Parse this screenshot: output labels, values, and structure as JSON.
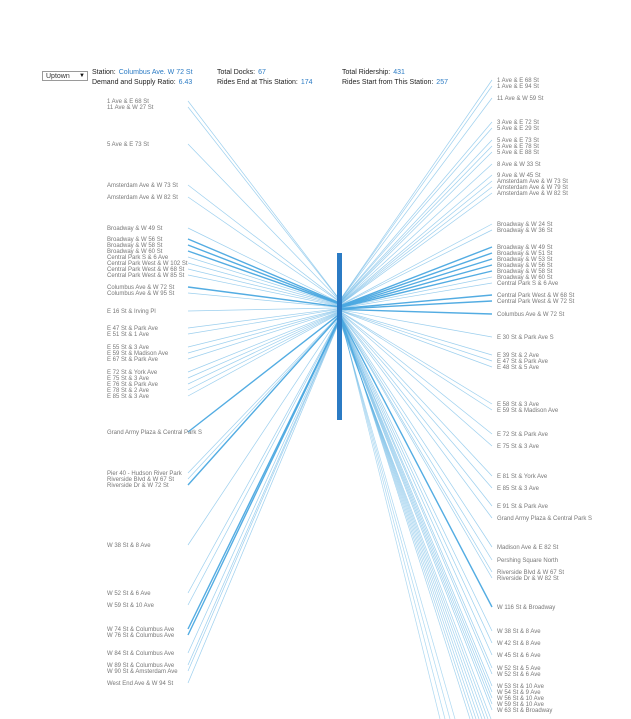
{
  "controls": {
    "dropdown_value": "Uptown",
    "dropdown_icon": "triangle-down-icon"
  },
  "stats": {
    "station_label": "Station:",
    "station_value": "Columbus Ave. W 72 St",
    "ratio_label": "Demand and Supply Ratio:",
    "ratio_value": "6.43",
    "docks_label": "Total Docks:",
    "docks_value": "67",
    "ends_label": "Rides End at This Station:",
    "ends_value": "174",
    "ridership_label": "Total Ridership:",
    "ridership_value": "431",
    "starts_label": "Rides Start from This Station:",
    "starts_value": "257"
  },
  "colors": {
    "line": "#4aa8e0",
    "bar": "#2b7bc4",
    "label": "#777777",
    "value": "#2b7bc4"
  },
  "left_labels": [
    "1 Ave & E 68 St",
    "11 Ave & W 27 St",
    "5 Ave & E 73 St",
    "Amsterdam Ave & W 73 St",
    "Amsterdam Ave & W 82 St",
    "Broadway & W 49 St",
    "Broadway & W 56 St",
    "Broadway & W 58 St",
    "Broadway & W 60 St",
    "Central Park S & 6 Ave",
    "Central Park West & W 102 St",
    "Central Park West & W 68 St",
    "Central Park West & W 85 St",
    "Columbus Ave & W 72 St",
    "Columbus Ave & W 95 St",
    "E 16 St & Irving Pl",
    "E 47 St & Park Ave",
    "E 51 St & 1 Ave",
    "E 55 St & 3 Ave",
    "E 59 St & Madison Ave",
    "E 67 St & Park Ave",
    "E 72 St & York Ave",
    "E 75 St & 3 Ave",
    "E 76 St & Park Ave",
    "E 78 St & 2 Ave",
    "E 85 St & 3 Ave",
    "Grand Army Plaza & Central Park S",
    "Pier 40 - Hudson River Park",
    "Riverside Blvd & W 67 St",
    "Riverside Dr & W 72 St",
    "W 38 St & 8 Ave",
    "W 52 St & 6 Ave",
    "W 59 St & 10 Ave",
    "W 74 St & Columbus Ave",
    "W 76 St & Columbus Ave",
    "W 84 St & Columbus Ave",
    "W 89 St & Columbus Ave",
    "W 90 St & Amsterdam Ave",
    "West End Ave & W 94 St"
  ],
  "right_labels": [
    "1 Ave & E 68 St",
    "1 Ave & E 94 St",
    "11 Ave & W 59 St",
    "3 Ave & E 72 St",
    "5 Ave & E 29 St",
    "5 Ave & E 73 St",
    "5 Ave & E 78 St",
    "5 Ave & E 88 St",
    "8 Ave & W 33 St",
    "9 Ave & W 45 St",
    "Amsterdam Ave & W 73 St",
    "Amsterdam Ave & W 79 St",
    "Amsterdam Ave & W 82 St",
    "Broadway & W 24 St",
    "Broadway & W 36 St",
    "Broadway & W 49 St",
    "Broadway & W 51 St",
    "Broadway & W 53 St",
    "Broadway & W 56 St",
    "Broadway & W 58 St",
    "Broadway & W 60 St",
    "Central Park S & 6 Ave",
    "Central Park West & W 68 St",
    "Central Park West & W 72 St",
    "Columbus Ave & W 72 St",
    "E 30 St & Park Ave S",
    "E 39 St & 2 Ave",
    "E 47 St & Park Ave",
    "E 48 St & 5 Ave",
    "E 58 St & 3 Ave",
    "E 59 St & Madison Ave",
    "E 72 St & Park Ave",
    "E 75 St & 3 Ave",
    "E 81 St & York Ave",
    "E 85 St & 3 Ave",
    "E 91 St & Park Ave",
    "Grand Army Plaza & Central Park S",
    "Madison Ave & E 82 St",
    "Pershing Square North",
    "Riverside Blvd & W 67 St",
    "Riverside Dr & W 82 St",
    "W 116 St & Broadway",
    "W 38 St & 8 Ave",
    "W 42 St & 8 Ave",
    "W 45 St & 6 Ave",
    "W 52 St & 5 Ave",
    "W 52 St & 6 Ave",
    "W 53 St & 10 Ave",
    "W 54 St & 9 Ave",
    "W 56 St & 10 Ave",
    "W 59 St & 10 Ave",
    "W 63 St & Broadway"
  ]
}
